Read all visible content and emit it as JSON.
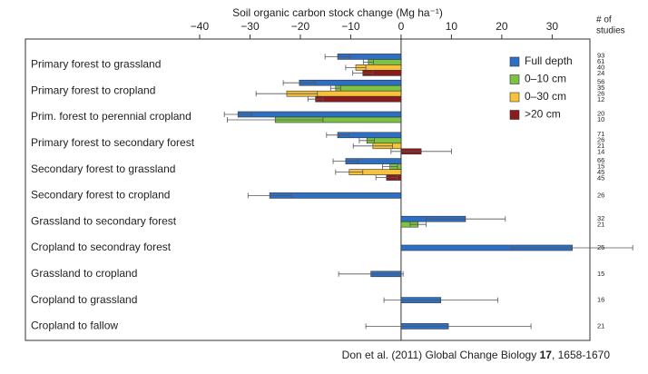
{
  "chart_data": {
    "type": "bar",
    "orientation": "horizontal",
    "title": "Soil organic carbon stock change (Mg ha⁻¹)",
    "studies_label": [
      "# of",
      "studies"
    ],
    "categories": [
      "Primary forest to grassland",
      "Primary forest to cropland",
      "Prim. forest to perennial cropland",
      "Primary forest to secondary forest",
      "Secondary forest to grassland",
      "Secondary forest to cropland",
      "Grassland to secondary forest",
      "Cropland to secondray forest",
      "Grassland to cropland",
      "Cropland to grassland",
      "Cropland to fallow"
    ],
    "series": [
      {
        "name": "Full depth",
        "color": "#2e6fc6",
        "values": [
          -12.6,
          -20.2,
          -32.4,
          -12.6,
          -11,
          -26.1,
          12.8,
          34,
          -6,
          7.9,
          9.4
        ],
        "errors": [
          2.5,
          3.2,
          2.7,
          2.2,
          2.5,
          4.3,
          7.9,
          12,
          6.4,
          11.3,
          16.4
        ]
      },
      {
        "name": "0–10 cm",
        "color": "#7cc243",
        "values": [
          -6.5,
          -13,
          -25,
          -6.8,
          -2.2,
          null,
          3.4,
          null,
          null,
          null,
          null
        ],
        "errors": [
          1,
          1,
          9.5,
          1.5,
          1.5,
          null,
          1.6,
          null,
          null,
          null,
          null
        ]
      },
      {
        "name": "0–30 cm",
        "color": "#f8c33a",
        "values": [
          -9,
          -22.7,
          null,
          -5.6,
          -10.3,
          null,
          null,
          null,
          null,
          null,
          null
        ],
        "errors": [
          2,
          6.1,
          null,
          3.9,
          2.7,
          null,
          null,
          null,
          null,
          null,
          null
        ]
      },
      {
        "name": ">20 cm",
        "color": "#8a1c1c",
        "values": [
          -7.6,
          -17,
          null,
          4,
          -2.9,
          null,
          null,
          null,
          null,
          null,
          null
        ],
        "errors": [
          2,
          1.5,
          null,
          6,
          2.1,
          null,
          null,
          null,
          null,
          null,
          null
        ]
      }
    ],
    "studies": [
      [
        93,
        61,
        40,
        24
      ],
      [
        56,
        35,
        26,
        12
      ],
      [
        20,
        10
      ],
      [
        71,
        26,
        21,
        14
      ],
      [
        66,
        15,
        45,
        45
      ],
      [
        26
      ],
      [
        32,
        21
      ],
      [
        25
      ],
      [
        15
      ],
      [
        16
      ],
      [
        21
      ]
    ],
    "xlim": [
      -74.6,
      37.5
    ],
    "xticks": [
      {
        "value": -40,
        "label": "−40"
      },
      {
        "value": -30,
        "label": "−30"
      },
      {
        "value": -20,
        "label": "−20"
      },
      {
        "value": -10,
        "label": "−10"
      },
      0,
      10,
      20,
      30
    ],
    "zero_line": true,
    "citation": {
      "pre": "Don et al. (2011) Global Change Biology ",
      "volume": "17",
      "post": ", 1658-1670"
    }
  }
}
